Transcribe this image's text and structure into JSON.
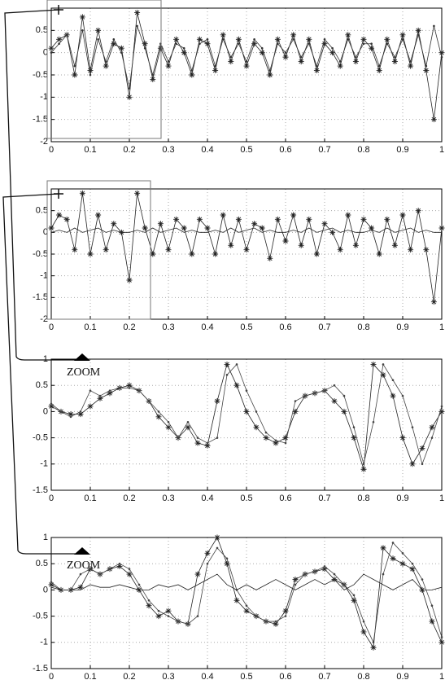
{
  "chart_data": [
    {
      "type": "line",
      "xlim": [
        0,
        1
      ],
      "ylim": [
        -2,
        1
      ],
      "grid": true,
      "xticks": [
        0,
        0.1,
        0.2,
        0.3,
        0.4,
        0.5,
        0.6,
        0.7,
        0.8,
        0.9,
        1
      ],
      "yticks": [
        -2,
        -1.5,
        -1,
        -0.5,
        0,
        0.5
      ],
      "x": [
        0,
        0.02,
        0.04,
        0.06,
        0.08,
        0.1,
        0.12,
        0.14,
        0.16,
        0.18,
        0.2,
        0.22,
        0.24,
        0.26,
        0.28,
        0.3,
        0.32,
        0.34,
        0.36,
        0.38,
        0.4,
        0.42,
        0.44,
        0.46,
        0.48,
        0.5,
        0.52,
        0.54,
        0.56,
        0.58,
        0.6,
        0.62,
        0.64,
        0.66,
        0.68,
        0.7,
        0.72,
        0.74,
        0.76,
        0.78,
        0.8,
        0.82,
        0.84,
        0.86,
        0.88,
        0.9,
        0.92,
        0.94,
        0.96,
        0.98,
        1
      ],
      "series": [
        {
          "color": "#222",
          "marker": "star",
          "values": [
            0.1,
            0.3,
            0.4,
            -0.5,
            0.8,
            -0.4,
            0.5,
            -0.3,
            0.2,
            0.1,
            -1.0,
            0.9,
            0.2,
            -0.6,
            0.1,
            -0.3,
            0.3,
            0.0,
            -0.5,
            0.3,
            0.2,
            -0.4,
            0.4,
            -0.2,
            0.3,
            -0.3,
            0.2,
            0.0,
            -0.5,
            0.3,
            -0.1,
            0.4,
            -0.2,
            0.3,
            -0.4,
            0.2,
            0.0,
            -0.3,
            0.4,
            -0.2,
            0.3,
            0.1,
            -0.4,
            0.3,
            -0.2,
            0.4,
            -0.3,
            0.5,
            -0.4,
            -1.5,
            0.0
          ]
        },
        {
          "color": "#333",
          "marker": "dot",
          "values": [
            0.0,
            0.2,
            0.4,
            -0.3,
            0.5,
            -0.5,
            0.3,
            -0.2,
            0.3,
            0.0,
            -0.8,
            0.6,
            0.1,
            -0.5,
            0.2,
            -0.2,
            0.2,
            0.1,
            -0.4,
            0.2,
            0.3,
            -0.3,
            0.3,
            -0.1,
            0.2,
            -0.2,
            0.3,
            0.1,
            -0.4,
            0.2,
            0.0,
            0.3,
            -0.1,
            0.2,
            -0.3,
            0.3,
            0.1,
            -0.2,
            0.3,
            -0.1,
            0.2,
            0.2,
            -0.3,
            0.2,
            -0.1,
            0.3,
            -0.2,
            0.4,
            -0.3,
            0.6,
            -0.1
          ]
        }
      ]
    },
    {
      "type": "line",
      "xlim": [
        0,
        1
      ],
      "ylim": [
        -2,
        1
      ],
      "grid": true,
      "xticks": [
        0,
        0.1,
        0.2,
        0.3,
        0.4,
        0.5,
        0.6,
        0.7,
        0.8,
        0.9,
        1
      ],
      "yticks": [
        -2,
        -1.5,
        -1,
        -0.5,
        0,
        0.5
      ],
      "x": [
        0,
        0.02,
        0.04,
        0.06,
        0.08,
        0.1,
        0.12,
        0.14,
        0.16,
        0.18,
        0.2,
        0.22,
        0.24,
        0.26,
        0.28,
        0.3,
        0.32,
        0.34,
        0.36,
        0.38,
        0.4,
        0.42,
        0.44,
        0.46,
        0.48,
        0.5,
        0.52,
        0.54,
        0.56,
        0.58,
        0.6,
        0.62,
        0.64,
        0.66,
        0.68,
        0.7,
        0.72,
        0.74,
        0.76,
        0.78,
        0.8,
        0.82,
        0.84,
        0.86,
        0.88,
        0.9,
        0.92,
        0.94,
        0.96,
        0.98,
        1
      ],
      "series": [
        {
          "color": "#222",
          "marker": "star",
          "values": [
            0.1,
            0.4,
            0.3,
            -0.4,
            0.9,
            -0.5,
            0.4,
            -0.4,
            0.2,
            0.0,
            -1.1,
            0.9,
            0.1,
            -0.5,
            0.2,
            -0.4,
            0.3,
            0.1,
            -0.5,
            0.3,
            0.1,
            -0.5,
            0.4,
            -0.3,
            0.3,
            -0.4,
            0.2,
            0.1,
            -0.6,
            0.3,
            -0.2,
            0.4,
            -0.3,
            0.3,
            -0.5,
            0.2,
            0.0,
            -0.4,
            0.4,
            -0.3,
            0.3,
            0.1,
            -0.5,
            0.3,
            -0.3,
            0.4,
            -0.4,
            0.5,
            -0.4,
            -1.6,
            0.1
          ]
        },
        {
          "color": "#222",
          "marker": "none",
          "values": [
            0.0,
            0.05,
            0.0,
            0.1,
            0.0,
            0.05,
            0.1,
            0.0,
            0.05,
            0.0,
            0.0,
            0.05,
            0.0,
            0.1,
            0.0,
            0.05,
            0.1,
            0.0,
            0.05,
            0.0,
            0.0,
            0.05,
            0.0,
            0.1,
            0.0,
            0.05,
            0.1,
            0.0,
            0.05,
            0.0,
            0.0,
            0.05,
            0.0,
            0.1,
            0.0,
            0.05,
            0.1,
            0.0,
            0.05,
            0.0,
            0.0,
            0.05,
            0.0,
            0.1,
            0.0,
            0.05,
            0.1,
            0.0,
            0.05,
            0.0,
            0.0
          ]
        }
      ]
    },
    {
      "type": "line",
      "xlim": [
        0,
        1
      ],
      "ylim": [
        -1.5,
        1
      ],
      "grid": true,
      "annotation": "ZOOM",
      "xticks": [
        0,
        0.1,
        0.2,
        0.3,
        0.4,
        0.5,
        0.6,
        0.7,
        0.8,
        0.9,
        1
      ],
      "yticks": [
        -1.5,
        -1,
        -0.5,
        0,
        0.5,
        1
      ],
      "x": [
        0,
        0.025,
        0.05,
        0.075,
        0.1,
        0.125,
        0.15,
        0.175,
        0.2,
        0.225,
        0.25,
        0.275,
        0.3,
        0.325,
        0.35,
        0.375,
        0.4,
        0.425,
        0.45,
        0.475,
        0.5,
        0.525,
        0.55,
        0.575,
        0.6,
        0.625,
        0.65,
        0.675,
        0.7,
        0.725,
        0.75,
        0.775,
        0.8,
        0.825,
        0.85,
        0.875,
        0.9,
        0.925,
        0.95,
        0.975,
        1
      ],
      "series": [
        {
          "color": "#222",
          "marker": "star",
          "values": [
            0.1,
            0.0,
            -0.05,
            -0.05,
            0.1,
            0.25,
            0.35,
            0.45,
            0.5,
            0.4,
            0.2,
            -0.1,
            -0.3,
            -0.5,
            -0.3,
            -0.6,
            -0.65,
            0.2,
            0.9,
            0.5,
            0.0,
            -0.3,
            -0.5,
            -0.6,
            -0.5,
            0.0,
            0.3,
            0.35,
            0.4,
            0.2,
            0.0,
            -0.5,
            -1.1,
            0.9,
            0.7,
            0.3,
            -0.5,
            -1.0,
            -0.7,
            -0.3,
            0.0
          ]
        },
        {
          "color": "#444",
          "marker": "dot",
          "values": [
            0.15,
            0.0,
            -0.1,
            0.0,
            0.4,
            0.3,
            0.4,
            0.45,
            0.45,
            0.4,
            0.2,
            0.0,
            -0.2,
            -0.5,
            -0.2,
            -0.5,
            -0.6,
            -0.5,
            0.7,
            0.9,
            0.4,
            0.0,
            -0.4,
            -0.55,
            -0.6,
            0.2,
            0.3,
            0.35,
            0.4,
            0.5,
            0.3,
            -0.3,
            -1.0,
            -0.2,
            0.9,
            0.6,
            0.3,
            -0.3,
            -1.0,
            -0.5,
            0.1
          ]
        }
      ]
    },
    {
      "type": "line",
      "xlim": [
        0,
        1
      ],
      "ylim": [
        -1.5,
        1
      ],
      "grid": true,
      "annotation": "ZOOM",
      "xticks": [
        0,
        0.1,
        0.2,
        0.3,
        0.4,
        0.5,
        0.6,
        0.7,
        0.8,
        0.9,
        1
      ],
      "yticks": [
        -1.5,
        -1,
        -0.5,
        0,
        0.5,
        1
      ],
      "x": [
        0,
        0.025,
        0.05,
        0.075,
        0.1,
        0.125,
        0.15,
        0.175,
        0.2,
        0.225,
        0.25,
        0.275,
        0.3,
        0.325,
        0.35,
        0.375,
        0.4,
        0.425,
        0.45,
        0.475,
        0.5,
        0.525,
        0.55,
        0.575,
        0.6,
        0.625,
        0.65,
        0.675,
        0.7,
        0.725,
        0.75,
        0.775,
        0.8,
        0.825,
        0.85,
        0.875,
        0.9,
        0.925,
        0.95,
        0.975,
        1
      ],
      "series": [
        {
          "color": "#222",
          "marker": "star",
          "values": [
            0.1,
            0.0,
            0.0,
            0.05,
            0.4,
            0.3,
            0.4,
            0.45,
            0.3,
            0.0,
            -0.3,
            -0.5,
            -0.4,
            -0.6,
            -0.65,
            0.3,
            0.7,
            1.0,
            0.5,
            -0.2,
            -0.4,
            -0.5,
            -0.6,
            -0.65,
            -0.4,
            0.2,
            0.3,
            0.35,
            0.4,
            0.2,
            0.1,
            -0.2,
            -0.8,
            -1.1,
            0.8,
            0.6,
            0.5,
            0.4,
            0.0,
            -0.6,
            -1.0
          ]
        },
        {
          "color": "#444",
          "marker": "dot",
          "values": [
            0.15,
            0.0,
            0.0,
            0.3,
            0.4,
            0.3,
            0.4,
            0.5,
            0.4,
            0.1,
            -0.2,
            -0.4,
            -0.5,
            -0.6,
            -0.65,
            -0.5,
            0.5,
            0.8,
            0.6,
            0.0,
            -0.3,
            -0.5,
            -0.6,
            -0.6,
            -0.5,
            0.1,
            0.3,
            0.35,
            0.45,
            0.3,
            0.1,
            -0.1,
            -0.6,
            -1.0,
            0.3,
            0.9,
            0.7,
            0.5,
            0.2,
            -0.3,
            -0.9
          ]
        },
        {
          "color": "#222",
          "marker": "none",
          "values": [
            0.05,
            0.0,
            0.0,
            0.0,
            0.1,
            0.05,
            0.05,
            0.1,
            0.05,
            0.0,
            0.0,
            0.1,
            0.05,
            0.1,
            0.0,
            0.1,
            0.2,
            0.3,
            0.1,
            0.0,
            0.1,
            0.0,
            0.1,
            0.2,
            0.1,
            0.0,
            0.1,
            0.2,
            0.1,
            0.2,
            0.0,
            0.1,
            0.3,
            0.2,
            0.1,
            0.0,
            0.1,
            0.2,
            0.0,
            0.0,
            0.05
          ]
        }
      ]
    }
  ]
}
